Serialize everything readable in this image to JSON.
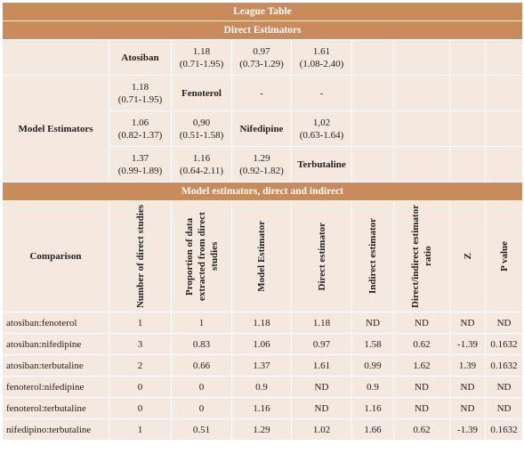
{
  "header": {
    "title": "League Table"
  },
  "league": {
    "title": "Direct Estimators",
    "row_label": "Model Estimators",
    "rows": [
      [
        "Atosiban",
        {
          "estimate": "1.18",
          "ci": "(0.71-1.95)"
        },
        {
          "estimate": "0.97",
          "ci": "(0.73-1.29)"
        },
        {
          "estimate": "1.61",
          "ci": "(1.08-2.40)"
        },
        null,
        null,
        null,
        null
      ],
      [
        {
          "estimate": "1.18",
          "ci": "(0.71-1.95)"
        },
        "Fenoterol",
        "-",
        "-",
        null,
        null,
        null,
        null
      ],
      [
        {
          "estimate": "1.06",
          "ci": "(0.82-1.37)"
        },
        {
          "estimate": "0,90",
          "ci": "(0.51-1.58)"
        },
        "Nifedipine",
        {
          "estimate": "1,02",
          "ci": "(0.63-1.64)"
        },
        null,
        null,
        null,
        null
      ],
      [
        {
          "estimate": "1.37",
          "ci": "(0.99-1.89)"
        },
        {
          "estimate": "1.16",
          "ci": "(0.64-2.11)"
        },
        {
          "estimate": "1.29",
          "ci": "(0.92-1.82)"
        },
        "Terbutaline",
        null,
        null,
        null,
        null
      ]
    ]
  },
  "table": {
    "title": "Model estimators, direct and indirect",
    "columns": [
      "Comparison",
      "Number of direct studies",
      "Proportion of data extracted from direct studies",
      "Model Estimator",
      "Direct estimator",
      "Indirect estimator",
      "Direct/indirect estimator ratio",
      "Z",
      "P value"
    ],
    "rows": [
      [
        "atosiban:fenoterol",
        "1",
        "1",
        "1.18",
        "1.18",
        "ND",
        "ND",
        "ND",
        "ND"
      ],
      [
        "atosiban:nifedipine",
        "3",
        "0.83",
        "1.06",
        "0.97",
        "1.58",
        "0.62",
        "-1.39",
        "0.1632"
      ],
      [
        "atosiban:terbutaline",
        "2",
        "0.66",
        "1.37",
        "1.61",
        "0.99",
        "1.62",
        "1.39",
        "0.1632"
      ],
      [
        "fenoterol:nifedipine",
        "0",
        "0",
        "0.9",
        "ND",
        "0.9",
        "ND",
        "ND",
        "ND"
      ],
      [
        "fenoterol:terbutaline",
        "0",
        "0",
        "1.16",
        "ND",
        "1.16",
        "ND",
        "ND",
        "ND"
      ],
      [
        "nifedipino:terbutaline",
        "1",
        "0.51",
        "1.29",
        "1.02",
        "1.66",
        "0.62",
        "-1.39",
        "0.1632"
      ]
    ]
  }
}
